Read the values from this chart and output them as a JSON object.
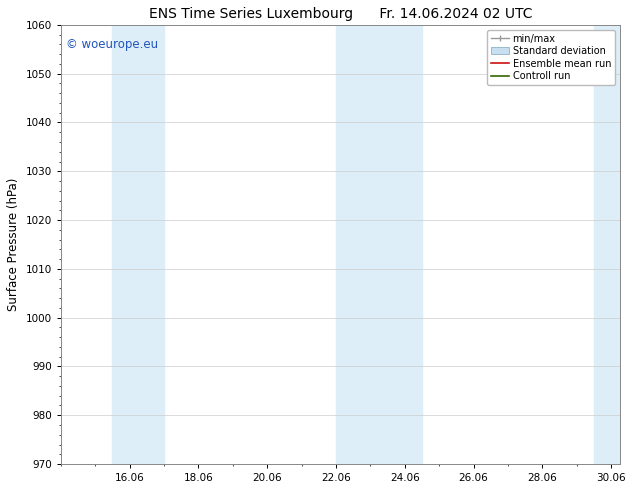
{
  "title_left": "ENS Time Series Luxembourg",
  "title_right": "Fr. 14.06.2024 02 UTC",
  "ylabel": "Surface Pressure (hPa)",
  "ylim": [
    970,
    1060
  ],
  "yticks": [
    970,
    980,
    990,
    1000,
    1010,
    1020,
    1030,
    1040,
    1050,
    1060
  ],
  "xtick_labels": [
    "16.06",
    "18.06",
    "20.06",
    "22.06",
    "24.06",
    "26.06",
    "28.06",
    "30.06"
  ],
  "xtick_days": [
    16,
    18,
    20,
    22,
    24,
    26,
    28,
    30
  ],
  "xlim_min": 14.083,
  "xlim_max": 30.25,
  "watermark": "© woeurope.eu",
  "watermark_color": "#2255bb",
  "band_ranges": [
    [
      15.5,
      17.0
    ],
    [
      22.0,
      24.5
    ],
    [
      29.5,
      30.5
    ]
  ],
  "band_color": "#ddeef8",
  "legend_labels": [
    "min/max",
    "Standard deviation",
    "Ensemble mean run",
    "Controll run"
  ],
  "minmax_color": "#999999",
  "stddev_facecolor": "#c8dff0",
  "stddev_edgecolor": "#99bbcc",
  "mean_color": "#cc1111",
  "ctrl_color": "#336600",
  "background_color": "#ffffff",
  "grid_color": "#cccccc",
  "spine_color": "#888888",
  "tick_label_fontsize": 7.5,
  "ylabel_fontsize": 8.5,
  "title_fontsize": 10,
  "legend_fontsize": 7,
  "watermark_fontsize": 8.5
}
